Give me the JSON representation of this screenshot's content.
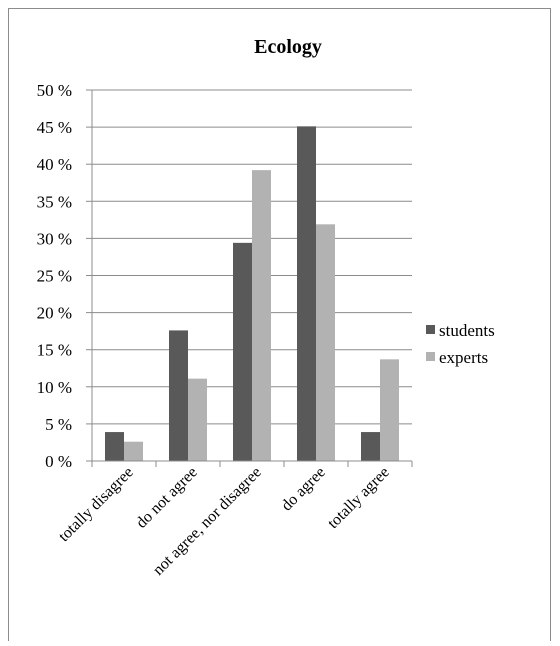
{
  "chart_data": {
    "type": "bar",
    "title": "Ecology",
    "categories": [
      "totally disagree",
      "do not agree",
      "not agree, nor disagree",
      "do agree",
      "totally agree"
    ],
    "series": [
      {
        "name": "students",
        "color": "#595959",
        "values": [
          3.9,
          17.6,
          29.4,
          45.1,
          3.9
        ]
      },
      {
        "name": "experts",
        "color": "#b2b2b2",
        "values": [
          2.6,
          11.1,
          39.2,
          31.9,
          13.7
        ]
      }
    ],
    "yticks": [
      "0 %",
      "5 %",
      "10 %",
      "15 %",
      "20 %",
      "25 %",
      "30 %",
      "35 %",
      "40 %",
      "45 %",
      "50 %"
    ],
    "ylim": [
      0,
      50
    ],
    "grid": true,
    "legend_position": "right"
  }
}
